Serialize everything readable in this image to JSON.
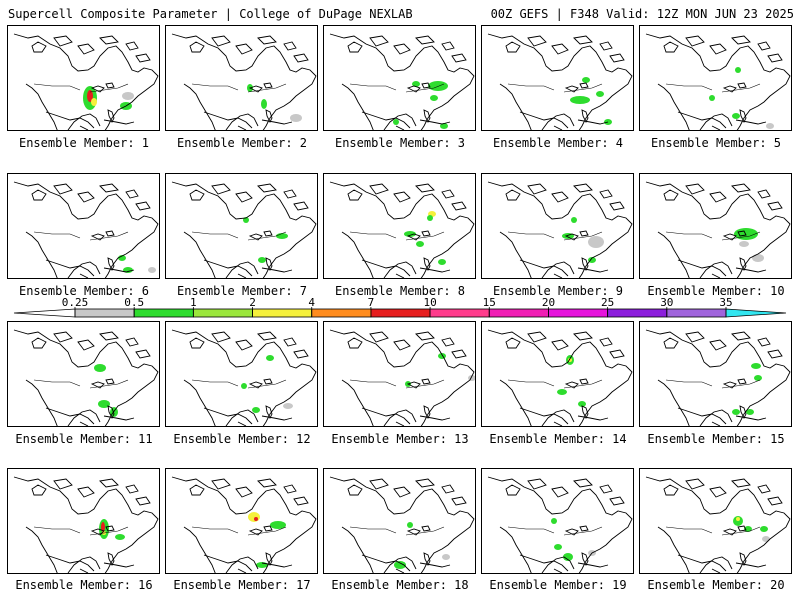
{
  "header": {
    "title": "Supercell Composite Parameter | College of DuPage NEXLAB",
    "run_info": "00Z GEFS | F348 Valid: 12Z MON JUN 23 2025"
  },
  "caption_prefix": "Ensemble Member: ",
  "members": [
    1,
    2,
    3,
    4,
    5,
    6,
    7,
    8,
    9,
    10,
    11,
    12,
    13,
    14,
    15,
    16,
    17,
    18,
    19,
    20
  ],
  "colorbar": {
    "labels": [
      "0.25",
      "0.5",
      "1",
      "2",
      "4",
      "7",
      "10",
      "15",
      "20",
      "25",
      "30",
      "35"
    ],
    "colors": [
      "#c8c8c8",
      "#2edc2e",
      "#9be63c",
      "#f5f03c",
      "#ff8c1e",
      "#e61e1e",
      "#ff3c8c",
      "#f01eb4",
      "#e614dc",
      "#8c1edc",
      "#a064dc",
      "#32e6f0"
    ]
  }
}
